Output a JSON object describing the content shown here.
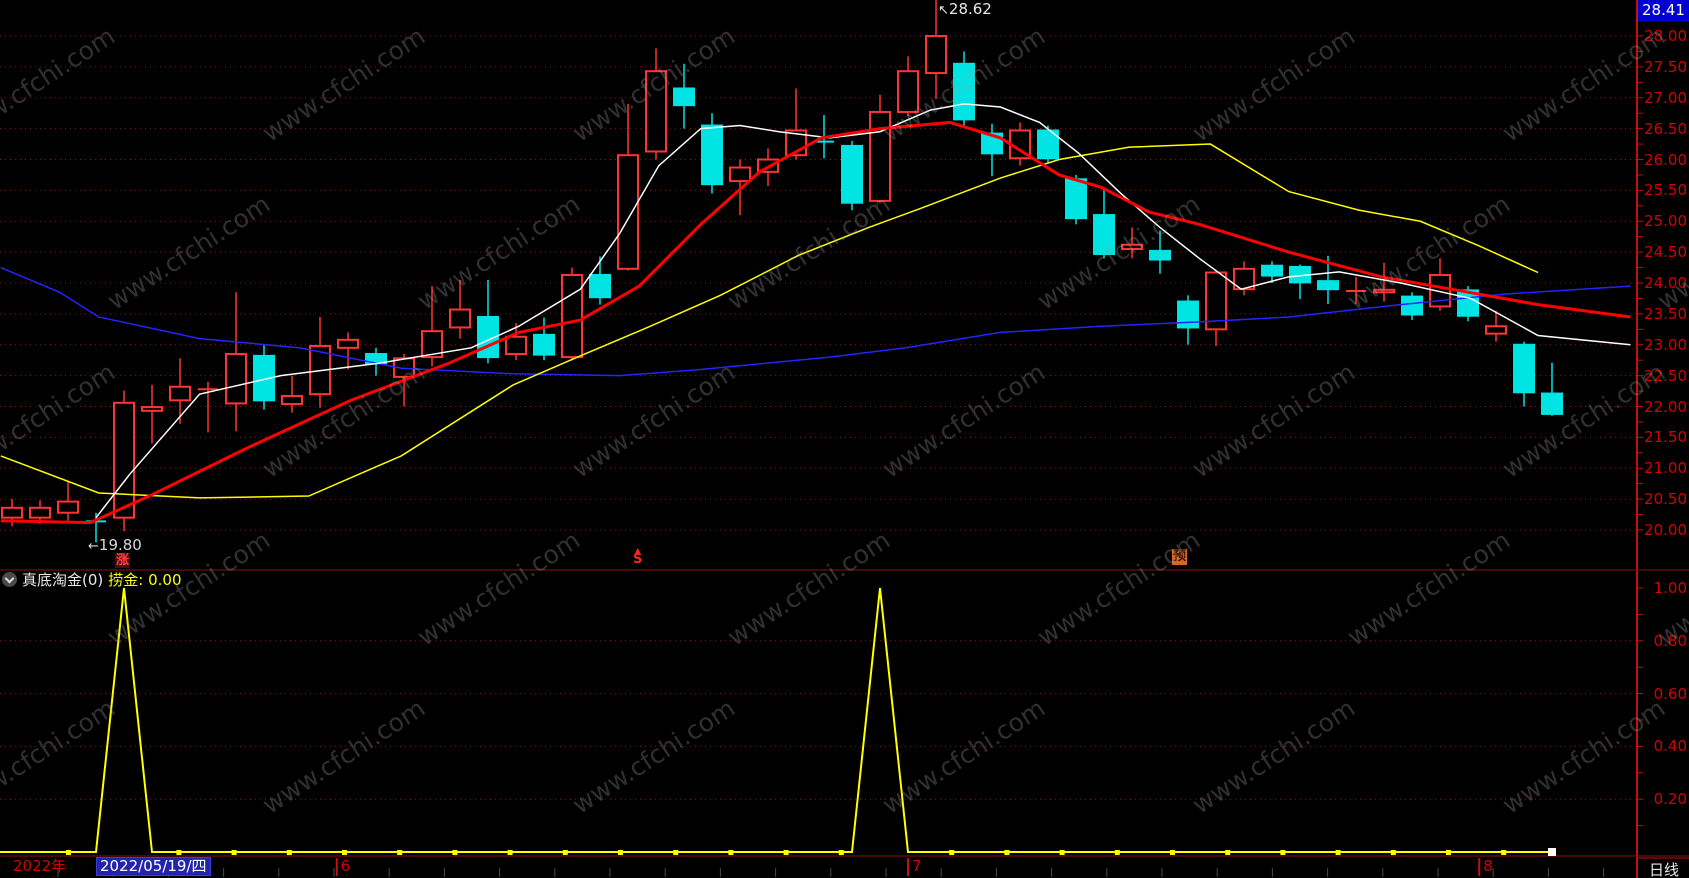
{
  "watermark": {
    "text": "www.cfchi.com"
  },
  "main_chart": {
    "y_axis": {
      "top_badge": "28.41",
      "labels": [
        "28.00",
        "27.50",
        "27.00",
        "26.50",
        "26.00",
        "25.50",
        "25.00",
        "24.50",
        "24.00",
        "23.50",
        "23.00",
        "22.50",
        "22.00",
        "21.50",
        "21.00",
        "20.50",
        "20.00"
      ],
      "label_color": "#d40000"
    },
    "annotations": {
      "high": {
        "arrow": "↖",
        "text": "28.62",
        "candle_index": 33
      },
      "low": {
        "arrow": "←",
        "text": "19.80",
        "candle_index": 3
      }
    },
    "markers": {
      "rise": {
        "text": "涨",
        "candle_index": 4,
        "fg": "#ff4040",
        "bg": "#4d0a0a"
      },
      "sell": {
        "arrow": "▲",
        "text": "S",
        "candle_index": 22,
        "color": "#ff2222"
      },
      "forecast": {
        "text": "预",
        "candle_index": 42,
        "fg": "#2b0e00",
        "bg": "#e0641e"
      }
    },
    "colors": {
      "up": "#ff3434",
      "down": "#00e4e4",
      "ma_white": "#ffffff",
      "ma_yellow": "#ffff00",
      "ma_red": "#ff0000",
      "ma_blue": "#2424ff",
      "grid": "#8f1010",
      "frame": "#c01010",
      "accent_badge": "#0000cf"
    }
  },
  "indicator_panel": {
    "header": {
      "title": "真底淘金(0)",
      "value_label": "捞金:",
      "value": "0.00"
    },
    "y_axis": {
      "labels": [
        "1.00",
        "0.80",
        "0.60",
        "0.40",
        "0.20"
      ]
    },
    "series_color": "#ffff00"
  },
  "bottom_bar": {
    "year_label": "2022年",
    "selected_date": "2022/05/19/四",
    "months": [
      {
        "label": "6",
        "candle_index": 11.6
      },
      {
        "label": "7",
        "candle_index": 32
      },
      {
        "label": "8",
        "candle_index": 52.4
      }
    ],
    "period_label": "日线"
  },
  "chart_data": [
    {
      "type": "candlestick",
      "title": "daily-price-panel",
      "y_range": [
        19.6,
        28.41
      ],
      "grid_step": 0.5,
      "ohlc": [
        [
          20.2,
          20.5,
          20.06,
          20.36
        ],
        [
          20.2,
          20.48,
          20.1,
          20.36
        ],
        [
          20.28,
          20.8,
          20.15,
          20.46
        ],
        [
          20.16,
          20.28,
          19.8,
          20.14
        ],
        [
          20.2,
          22.26,
          19.98,
          22.06
        ],
        [
          21.93,
          22.35,
          21.4,
          21.99
        ],
        [
          22.1,
          22.78,
          21.72,
          22.32
        ],
        [
          22.26,
          22.4,
          21.58,
          22.28
        ],
        [
          22.05,
          23.85,
          21.6,
          22.85
        ],
        [
          22.82,
          23.0,
          21.95,
          22.1
        ],
        [
          22.04,
          22.5,
          21.9,
          22.17
        ],
        [
          22.2,
          23.45,
          21.98,
          22.98
        ],
        [
          22.95,
          23.2,
          22.6,
          23.08
        ],
        [
          22.85,
          22.95,
          22.5,
          22.7
        ],
        [
          22.48,
          22.85,
          22.0,
          22.78
        ],
        [
          22.8,
          23.95,
          22.65,
          23.22
        ],
        [
          23.28,
          24.05,
          23.1,
          23.57
        ],
        [
          23.45,
          24.05,
          22.7,
          22.8
        ],
        [
          22.85,
          23.35,
          22.75,
          23.13
        ],
        [
          23.16,
          23.44,
          22.75,
          22.84
        ],
        [
          22.8,
          24.25,
          22.75,
          24.13
        ],
        [
          24.13,
          24.43,
          23.65,
          23.77
        ],
        [
          24.23,
          26.9,
          24.2,
          26.07
        ],
        [
          26.13,
          27.8,
          26.0,
          27.43
        ],
        [
          27.15,
          27.55,
          26.5,
          26.88
        ],
        [
          26.55,
          26.75,
          25.45,
          25.6
        ],
        [
          25.65,
          26.0,
          25.1,
          25.87
        ],
        [
          25.8,
          26.18,
          25.57,
          26.0
        ],
        [
          26.07,
          27.15,
          26.0,
          26.47
        ],
        [
          26.31,
          26.72,
          26.02,
          26.29
        ],
        [
          26.22,
          26.3,
          25.18,
          25.3
        ],
        [
          25.33,
          27.05,
          25.3,
          26.77
        ],
        [
          26.77,
          27.67,
          26.7,
          27.43
        ],
        [
          27.4,
          28.62,
          26.98,
          28.0
        ],
        [
          27.55,
          27.75,
          26.55,
          26.65
        ],
        [
          26.42,
          26.58,
          25.73,
          26.1
        ],
        [
          26.02,
          26.6,
          25.9,
          26.47
        ],
        [
          26.47,
          26.55,
          25.95,
          26.02
        ],
        [
          25.68,
          25.75,
          24.95,
          25.05
        ],
        [
          25.1,
          25.52,
          24.4,
          24.47
        ],
        [
          24.55,
          24.9,
          24.4,
          24.62
        ],
        [
          24.52,
          24.85,
          24.15,
          24.38
        ],
        [
          23.7,
          23.8,
          23.0,
          23.28
        ],
        [
          23.25,
          24.2,
          22.98,
          24.17
        ],
        [
          23.9,
          24.35,
          23.8,
          24.23
        ],
        [
          24.28,
          24.35,
          24.0,
          24.12
        ],
        [
          24.26,
          24.3,
          23.74,
          24.01
        ],
        [
          24.03,
          24.44,
          23.66,
          23.9
        ],
        [
          23.84,
          24.1,
          23.66,
          23.87
        ],
        [
          23.85,
          24.33,
          23.7,
          23.89
        ],
        [
          23.78,
          23.85,
          23.4,
          23.49
        ],
        [
          23.62,
          24.4,
          23.55,
          24.13
        ],
        [
          23.88,
          23.95,
          23.38,
          23.47
        ],
        [
          23.18,
          23.55,
          23.05,
          23.3
        ],
        [
          23.0,
          23.05,
          22.0,
          22.23
        ],
        [
          22.21,
          22.71,
          21.85,
          21.88
        ]
      ],
      "ma_series": [
        {
          "name": "ma-short-white",
          "color": "#ffffff",
          "width": 1.5,
          "points": [
            [
              3,
              20.2
            ],
            [
              4.2,
              20.9
            ],
            [
              6.7,
              22.2
            ],
            [
              9.6,
              22.5
            ],
            [
              13.1,
              22.7
            ],
            [
              16.4,
              22.95
            ],
            [
              18.1,
              23.3
            ],
            [
              20.3,
              23.9
            ],
            [
              21.7,
              24.8
            ],
            [
              23.1,
              25.9
            ],
            [
              24.6,
              26.5
            ],
            [
              26,
              26.55
            ],
            [
              27.4,
              26.45
            ],
            [
              29.2,
              26.35
            ],
            [
              31,
              26.45
            ],
            [
              32.8,
              26.8
            ],
            [
              34,
              26.9
            ],
            [
              35.3,
              26.85
            ],
            [
              36.7,
              26.6
            ],
            [
              38.1,
              26.1
            ],
            [
              39.6,
              25.45
            ],
            [
              41,
              24.9
            ],
            [
              42.4,
              24.4
            ],
            [
              43.9,
              23.9
            ],
            [
              45.6,
              24.1
            ],
            [
              47.4,
              24.18
            ],
            [
              49.6,
              24.0
            ],
            [
              52.1,
              23.75
            ],
            [
              54.5,
              23.15
            ],
            [
              57.8,
              23.0
            ]
          ]
        },
        {
          "name": "ma-mid-red",
          "color": "#ff0000",
          "width": 3,
          "points": [
            [
              -0.4,
              20.15
            ],
            [
              2.8,
              20.12
            ],
            [
              4.9,
              20.55
            ],
            [
              8.5,
              21.35
            ],
            [
              12.1,
              22.1
            ],
            [
              15.6,
              22.7
            ],
            [
              18.1,
              23.2
            ],
            [
              20.3,
              23.4
            ],
            [
              22.4,
              23.95
            ],
            [
              24.6,
              24.95
            ],
            [
              26.7,
              25.8
            ],
            [
              28.9,
              26.35
            ],
            [
              31,
              26.5
            ],
            [
              33.5,
              26.6
            ],
            [
              35.3,
              26.35
            ],
            [
              37.4,
              25.75
            ],
            [
              38.9,
              25.55
            ],
            [
              40.6,
              25.15
            ],
            [
              42.4,
              24.95
            ],
            [
              45.6,
              24.5
            ],
            [
              48.9,
              24.1
            ],
            [
              51.4,
              23.9
            ],
            [
              54.5,
              23.65
            ],
            [
              57.8,
              23.45
            ]
          ]
        },
        {
          "name": "ma-long-yellow",
          "color": "#ffff00",
          "width": 1.5,
          "points": [
            [
              -0.4,
              21.2
            ],
            [
              3.1,
              20.6
            ],
            [
              6.7,
              20.52
            ],
            [
              10.6,
              20.55
            ],
            [
              13.9,
              21.2
            ],
            [
              17.9,
              22.35
            ],
            [
              20.2,
              22.8
            ],
            [
              22.8,
              23.3
            ],
            [
              25.3,
              23.8
            ],
            [
              28.1,
              24.45
            ],
            [
              30.6,
              24.9
            ],
            [
              32.4,
              25.2
            ],
            [
              35.3,
              25.7
            ],
            [
              37.4,
              26.0
            ],
            [
              39.9,
              26.2
            ],
            [
              42.8,
              26.25
            ],
            [
              45.6,
              25.48
            ],
            [
              48.1,
              25.18
            ],
            [
              50.3,
              25.0
            ],
            [
              52.4,
              24.6
            ],
            [
              54.5,
              24.17
            ]
          ]
        },
        {
          "name": "ma-xlong-blue",
          "color": "#2424ff",
          "width": 1.5,
          "points": [
            [
              -0.4,
              24.25
            ],
            [
              1.7,
              23.85
            ],
            [
              3.1,
              23.45
            ],
            [
              6.7,
              23.1
            ],
            [
              10.3,
              22.95
            ],
            [
              13.9,
              22.62
            ],
            [
              17.9,
              22.53
            ],
            [
              21.7,
              22.5
            ],
            [
              24.6,
              22.6
            ],
            [
              29.2,
              22.8
            ],
            [
              31.9,
              22.95
            ],
            [
              35.3,
              23.2
            ],
            [
              38.9,
              23.3
            ],
            [
              42.4,
              23.37
            ],
            [
              45.6,
              23.45
            ],
            [
              49.6,
              23.65
            ],
            [
              53.3,
              23.82
            ],
            [
              57.8,
              23.95
            ]
          ]
        }
      ]
    },
    {
      "type": "line",
      "title": "真底淘金 捞金",
      "y_range": [
        0,
        1
      ],
      "baseline_value": 0,
      "spikes": [
        {
          "candle_index": 4,
          "value": 1.0
        },
        {
          "candle_index": 31,
          "value": 1.0
        }
      ]
    }
  ]
}
